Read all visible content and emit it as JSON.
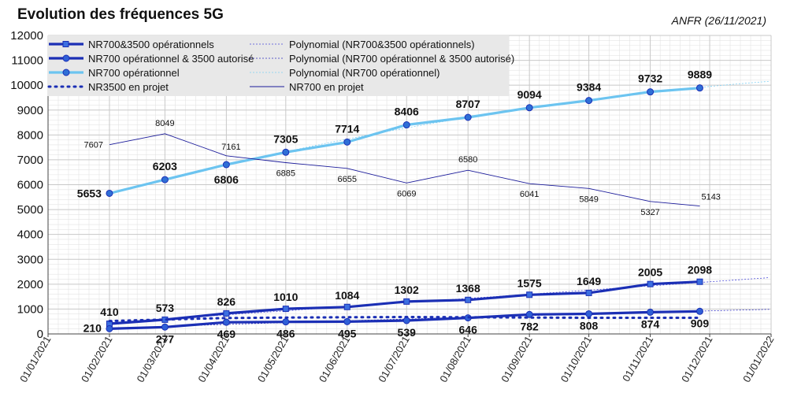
{
  "title": "Evolution des fréquences 5G",
  "source_note": "ANFR (26/11/2021)",
  "colors": {
    "nr700_3500": "#1b2fb5",
    "nr700_op_3500_aut": "#1b2fb5",
    "nr700_op": "#6cc4f0",
    "nr3500_projet": "#1b2fb5",
    "nr700_projet": "#1b1b9a",
    "grid": "#c8c8c8",
    "legend_bg": "#e8e8e8"
  },
  "chart_data": {
    "type": "line",
    "title": "Evolution des fréquences 5G",
    "xlabel": "",
    "ylabel": "",
    "ylim": [
      0,
      12000
    ],
    "yticks": [
      0,
      1000,
      2000,
      3000,
      4000,
      5000,
      6000,
      7000,
      8000,
      9000,
      10000,
      11000,
      12000
    ],
    "xlim": [
      "01/01/2021",
      "01/01/2022"
    ],
    "xticks": [
      "01/01/2021",
      "01/02/2021",
      "01/03/2021",
      "01/04/2021",
      "01/05/2021",
      "01/06/2021",
      "01/07/2021",
      "01/08/2021",
      "01/09/2021",
      "01/10/2021",
      "01/11/2021",
      "01/12/2021",
      "01/01/2022"
    ],
    "grid": true,
    "legend_placement": "top-left",
    "dates": [
      "01/02/2021",
      "01/03/2021",
      "01/04/2021",
      "01/05/2021",
      "01/06/2021",
      "01/07/2021",
      "01/08/2021",
      "01/09/2021",
      "01/10/2021",
      "01/11/2021",
      "26/11/2021"
    ],
    "series": [
      {
        "name": "NR700&3500 opérationnels",
        "values": [
          410,
          573,
          826,
          1010,
          1084,
          1302,
          1368,
          1575,
          1649,
          2005,
          2098
        ],
        "labels": [
          "410",
          "573",
          "826",
          "1010",
          "1084",
          "1302",
          "1368",
          "1575",
          "1649",
          "2005",
          "2098"
        ],
        "style": "solid-square"
      },
      {
        "name": "NR700 opérationnel & 3500 autorisé",
        "values": [
          210,
          277,
          469,
          486,
          495,
          539,
          646,
          782,
          808,
          874,
          909
        ],
        "labels": [
          "210",
          "277",
          "469",
          "486",
          "495",
          "539",
          "646",
          "782",
          "808",
          "874",
          "909"
        ],
        "style": "solid-circle"
      },
      {
        "name": "NR700 opérationnel",
        "values": [
          5653,
          6203,
          6806,
          7305,
          7714,
          8406,
          8707,
          9094,
          9384,
          9732,
          9889
        ],
        "labels": [
          "5653",
          "6203",
          "6806",
          "7305",
          "7714",
          "8406",
          "8707",
          "9094",
          "9384",
          "9732",
          "9889"
        ],
        "style": "light-circle"
      },
      {
        "name": "NR3500 en projet",
        "values": [
          520,
          580,
          640,
          660,
          670,
          680,
          670,
          660,
          650,
          650,
          650
        ],
        "labels": [],
        "style": "dotted"
      },
      {
        "name": "NR700 en projet",
        "values": [
          7607,
          8049,
          7161,
          6885,
          6655,
          6069,
          6580,
          6041,
          5849,
          5327,
          5143
        ],
        "labels": [
          "7607",
          "8049",
          "7161",
          "6885",
          "6655",
          "6069",
          "6580",
          "6041",
          "5849",
          "5327",
          "5143"
        ],
        "style": "thin"
      }
    ],
    "trendlines": [
      {
        "name": "Polynomial (NR700&3500 opérationnels)",
        "of": "NR700&3500 opérationnels"
      },
      {
        "name": "Polynomial (NR700 opérationnel & 3500 autorisé)",
        "of": "NR700 opérationnel & 3500 autorisé"
      },
      {
        "name": "Polynomial (NR700 opérationnel)",
        "of": "NR700 opérationnel"
      }
    ]
  }
}
